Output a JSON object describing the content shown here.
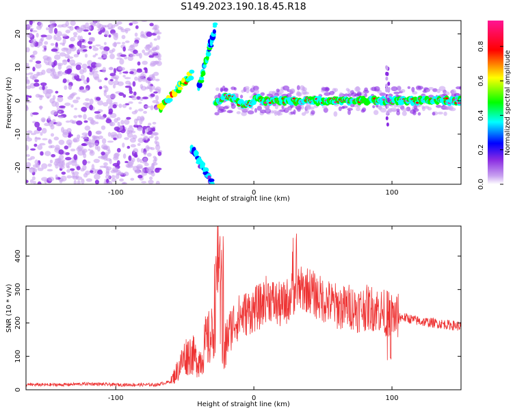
{
  "title": "S149.2023.190.18.45.R18",
  "chart_data": [
    {
      "type": "heatmap",
      "name": "spectrogram",
      "xlabel": "Height of straight line (km)",
      "ylabel": "Frequency (Hz)",
      "xlim": [
        -165,
        150
      ],
      "ylim": [
        -25,
        24
      ],
      "xticks": [
        -100,
        0,
        100
      ],
      "xtick_labels": [
        "-100",
        "0",
        "100"
      ],
      "yticks": [
        -20,
        -10,
        0,
        10,
        20
      ],
      "ytick_labels": [
        "-20",
        "-10",
        "0",
        "10",
        "20"
      ],
      "colorbar": {
        "label": "Normalized spectral amplitude",
        "range": [
          0.0,
          0.95
        ],
        "ticks": [
          0.0,
          0.2,
          0.4,
          0.6,
          0.8
        ],
        "tick_labels": [
          "0.0",
          "0.2",
          "0.4",
          "0.6",
          "0.8"
        ],
        "colormap": [
          "#ffffff",
          "#c9a3f0",
          "#8a2be2",
          "#0000ff",
          "#00ffff",
          "#00ff00",
          "#ffff00",
          "#ff0000",
          "#ff1493"
        ]
      },
      "features": [
        {
          "segment": "noise",
          "x": [
            -165,
            -68
          ],
          "y": [
            -25,
            24
          ],
          "amplitude": 0.15
        },
        {
          "segment": "rising-branch",
          "x": [
            -68,
            -45
          ],
          "y_start": -2,
          "y_end": 8,
          "amplitude": 0.5
        },
        {
          "segment": "upper-arm",
          "x": [
            -40,
            -28
          ],
          "y_start": 4,
          "y_end": 22,
          "amplitude": 0.3
        },
        {
          "segment": "lower-arm",
          "x": [
            -45,
            -30
          ],
          "y_start": -14,
          "y_end": -25,
          "amplitude": 0.25
        },
        {
          "segment": "carrier",
          "x": [
            -28,
            150
          ],
          "y": 0,
          "amplitude": 0.65
        },
        {
          "segment": "spike",
          "x": [
            96,
            98
          ],
          "y": [
            -8,
            10
          ],
          "amplitude": 0.3
        }
      ]
    },
    {
      "type": "line",
      "name": "snr",
      "xlabel": "Height of straight line (km)",
      "ylabel": "SNR (10 * v/v)",
      "xlim": [
        -165,
        150
      ],
      "ylim": [
        0,
        490
      ],
      "xticks": [
        -100,
        0,
        100
      ],
      "xtick_labels": [
        "-100",
        "0",
        "100"
      ],
      "yticks": [
        0,
        100,
        200,
        300,
        400
      ],
      "ytick_labels": [
        "0",
        "100",
        "200",
        "300",
        "400"
      ],
      "color": "#ee3333",
      "series": [
        {
          "x": [
            -165,
            -140,
            -120,
            -100,
            -80,
            -70,
            -60,
            -55,
            -50,
            -45,
            -42,
            -38,
            -35,
            -30,
            -26,
            -24,
            -22,
            -20,
            -15,
            -10,
            -5,
            0,
            5,
            10,
            15,
            20,
            25,
            30,
            35,
            40,
            45,
            50,
            55,
            60,
            65,
            70,
            75,
            80,
            85,
            90,
            95,
            100,
            103,
            110,
            120,
            130,
            140,
            150
          ],
          "y": [
            15,
            15,
            18,
            15,
            15,
            15,
            25,
            60,
            100,
            110,
            90,
            90,
            140,
            160,
            400,
            250,
            60,
            150,
            200,
            220,
            230,
            240,
            250,
            280,
            260,
            250,
            270,
            300,
            300,
            300,
            280,
            270,
            260,
            250,
            245,
            250,
            240,
            245,
            245,
            240,
            230,
            225,
            220,
            215,
            205,
            200,
            195,
            190
          ]
        }
      ]
    }
  ]
}
